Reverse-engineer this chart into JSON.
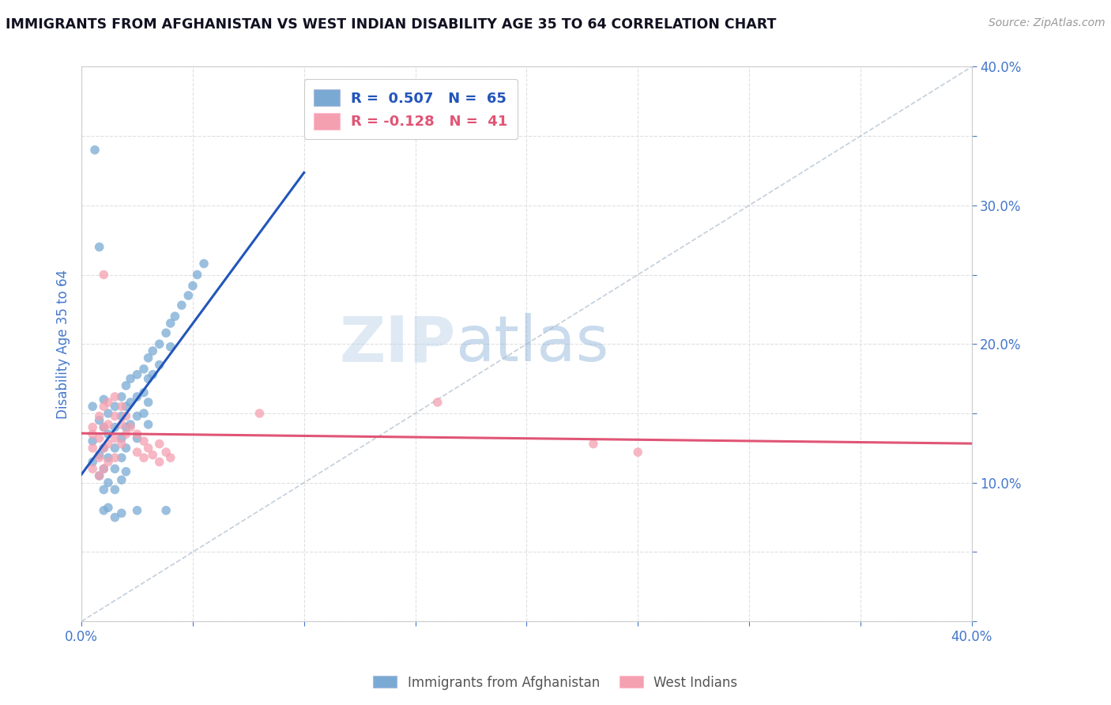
{
  "title": "IMMIGRANTS FROM AFGHANISTAN VS WEST INDIAN DISABILITY AGE 35 TO 64 CORRELATION CHART",
  "source": "Source: ZipAtlas.com",
  "ylabel": "Disability Age 35 to 64",
  "xlim": [
    0.0,
    0.4
  ],
  "ylim": [
    0.0,
    0.4
  ],
  "R_afghanistan": 0.507,
  "N_afghanistan": 65,
  "R_west_indian": -0.128,
  "N_west_indian": 41,
  "afghanistan_color": "#7aaad4",
  "west_indian_color": "#f4a0b0",
  "afghanistan_line_color": "#2255bb",
  "west_indian_line_color": "#e05575",
  "diagonal_color": "#aabbcc",
  "watermark_color": "#c5d8ea",
  "grid_color": "#dddddd",
  "background_color": "#ffffff",
  "title_color": "#111122",
  "axis_label_color": "#4477cc",
  "tick_color": "#4477cc",
  "afghanistan_scatter": [
    [
      0.005,
      0.155
    ],
    [
      0.005,
      0.13
    ],
    [
      0.005,
      0.115
    ],
    [
      0.008,
      0.145
    ],
    [
      0.008,
      0.12
    ],
    [
      0.008,
      0.105
    ],
    [
      0.01,
      0.16
    ],
    [
      0.01,
      0.14
    ],
    [
      0.01,
      0.125
    ],
    [
      0.01,
      0.11
    ],
    [
      0.01,
      0.095
    ],
    [
      0.012,
      0.15
    ],
    [
      0.012,
      0.135
    ],
    [
      0.012,
      0.118
    ],
    [
      0.012,
      0.1
    ],
    [
      0.015,
      0.155
    ],
    [
      0.015,
      0.14
    ],
    [
      0.015,
      0.125
    ],
    [
      0.015,
      0.11
    ],
    [
      0.015,
      0.095
    ],
    [
      0.018,
      0.162
    ],
    [
      0.018,
      0.148
    ],
    [
      0.018,
      0.132
    ],
    [
      0.018,
      0.118
    ],
    [
      0.018,
      0.102
    ],
    [
      0.02,
      0.17
    ],
    [
      0.02,
      0.155
    ],
    [
      0.02,
      0.14
    ],
    [
      0.02,
      0.125
    ],
    [
      0.02,
      0.108
    ],
    [
      0.022,
      0.175
    ],
    [
      0.022,
      0.158
    ],
    [
      0.022,
      0.142
    ],
    [
      0.025,
      0.178
    ],
    [
      0.025,
      0.162
    ],
    [
      0.025,
      0.148
    ],
    [
      0.025,
      0.132
    ],
    [
      0.028,
      0.182
    ],
    [
      0.028,
      0.165
    ],
    [
      0.028,
      0.15
    ],
    [
      0.03,
      0.19
    ],
    [
      0.03,
      0.175
    ],
    [
      0.03,
      0.158
    ],
    [
      0.03,
      0.142
    ],
    [
      0.032,
      0.195
    ],
    [
      0.032,
      0.178
    ],
    [
      0.035,
      0.2
    ],
    [
      0.035,
      0.185
    ],
    [
      0.038,
      0.208
    ],
    [
      0.04,
      0.215
    ],
    [
      0.04,
      0.198
    ],
    [
      0.042,
      0.22
    ],
    [
      0.045,
      0.228
    ],
    [
      0.048,
      0.235
    ],
    [
      0.05,
      0.242
    ],
    [
      0.052,
      0.25
    ],
    [
      0.055,
      0.258
    ],
    [
      0.008,
      0.27
    ],
    [
      0.01,
      0.08
    ],
    [
      0.012,
      0.082
    ],
    [
      0.015,
      0.075
    ],
    [
      0.018,
      0.078
    ],
    [
      0.006,
      0.34
    ],
    [
      0.025,
      0.08
    ],
    [
      0.038,
      0.08
    ]
  ],
  "west_indian_scatter": [
    [
      0.005,
      0.14
    ],
    [
      0.005,
      0.125
    ],
    [
      0.005,
      0.11
    ],
    [
      0.005,
      0.135
    ],
    [
      0.008,
      0.148
    ],
    [
      0.008,
      0.132
    ],
    [
      0.008,
      0.118
    ],
    [
      0.008,
      0.105
    ],
    [
      0.01,
      0.155
    ],
    [
      0.01,
      0.14
    ],
    [
      0.01,
      0.125
    ],
    [
      0.01,
      0.11
    ],
    [
      0.012,
      0.158
    ],
    [
      0.012,
      0.142
    ],
    [
      0.012,
      0.128
    ],
    [
      0.012,
      0.115
    ],
    [
      0.015,
      0.162
    ],
    [
      0.015,
      0.148
    ],
    [
      0.015,
      0.132
    ],
    [
      0.015,
      0.118
    ],
    [
      0.018,
      0.155
    ],
    [
      0.018,
      0.142
    ],
    [
      0.018,
      0.128
    ],
    [
      0.02,
      0.148
    ],
    [
      0.02,
      0.135
    ],
    [
      0.022,
      0.14
    ],
    [
      0.025,
      0.135
    ],
    [
      0.025,
      0.122
    ],
    [
      0.028,
      0.13
    ],
    [
      0.028,
      0.118
    ],
    [
      0.03,
      0.125
    ],
    [
      0.032,
      0.12
    ],
    [
      0.035,
      0.115
    ],
    [
      0.035,
      0.128
    ],
    [
      0.038,
      0.122
    ],
    [
      0.04,
      0.118
    ],
    [
      0.01,
      0.25
    ],
    [
      0.23,
      0.128
    ],
    [
      0.25,
      0.122
    ],
    [
      0.16,
      0.158
    ],
    [
      0.08,
      0.15
    ]
  ]
}
